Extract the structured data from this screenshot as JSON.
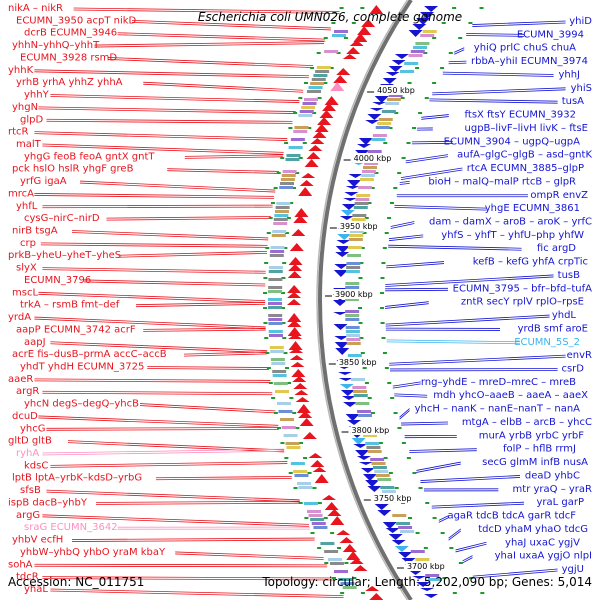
{
  "title": "Escherichia coli UMN026, complete genome",
  "footer": {
    "accession": "Accession: NC_011751",
    "info": "Topology: circular; Length: 5,202,090 bp; Genes: 5,014"
  },
  "colors": {
    "forward": "#e8141e",
    "reverse": "#1515d2",
    "rna": "#ff8fc1",
    "trna": "#3bb4ef",
    "backbone": "#707070"
  },
  "ticks": [
    "4050 kbp",
    "4000 kbp",
    "3950 kbp",
    "3900 kbp",
    "3850 kbp",
    "3800 kbp",
    "3750 kbp",
    "3700 kbp"
  ],
  "left_labels": [
    {
      "t": "nikA – nikR",
      "c": "forward"
    },
    {
      "t": "ECUMN_3950 acpT nikD",
      "c": "forward"
    },
    {
      "t": "dcrB  ECUMN_3946",
      "c": "forward"
    },
    {
      "t": "yhhN–yhhQ–yhhT",
      "c": "forward"
    },
    {
      "t": "ECUMN_3928 rsmD",
      "c": "forward"
    },
    {
      "t": "yhhK",
      "c": "forward"
    },
    {
      "t": "yrhB  yrhA  yhhZ  yhhA",
      "c": "forward"
    },
    {
      "t": "yhhY",
      "c": "forward"
    },
    {
      "t": "yhgN",
      "c": "forward"
    },
    {
      "t": "glpD",
      "c": "forward"
    },
    {
      "t": "rtcR",
      "c": "forward"
    },
    {
      "t": "malT",
      "c": "forward"
    },
    {
      "t": "yhgG  feoB  feoA  gntX  gntT",
      "c": "forward"
    },
    {
      "t": "pck  hslO  hslR  yhgF  greB",
      "c": "forward"
    },
    {
      "t": "yrfG  igaA",
      "c": "forward"
    },
    {
      "t": "mrcA",
      "c": "forward"
    },
    {
      "t": "yhfL",
      "c": "forward"
    },
    {
      "t": "cysG–nirC–nirD",
      "c": "forward"
    },
    {
      "t": "nirB  tsgA",
      "c": "forward"
    },
    {
      "t": "crp",
      "c": "forward"
    },
    {
      "t": "prkB–yheU–yheT–yheS",
      "c": "forward"
    },
    {
      "t": "slyX",
      "c": "forward"
    },
    {
      "t": "ECUMN_3796",
      "c": "forward"
    },
    {
      "t": "mscL",
      "c": "forward"
    },
    {
      "t": "trkA – rsmB  fmt–def",
      "c": "forward"
    },
    {
      "t": "yrdA",
      "c": "forward"
    },
    {
      "t": "aapP  ECUMN_3742  acrF",
      "c": "forward"
    },
    {
      "t": "aapJ",
      "c": "forward"
    },
    {
      "t": "acrE  fis–dusB–prmA  accC–accB",
      "c": "forward"
    },
    {
      "t": "yhdT  yhdH  ECUMN_3725",
      "c": "forward"
    },
    {
      "t": "aaeR",
      "c": "forward"
    },
    {
      "t": "argR",
      "c": "forward"
    },
    {
      "t": "yhcN  degS–degQ–yhcB",
      "c": "forward"
    },
    {
      "t": "dcuD",
      "c": "forward"
    },
    {
      "t": "yhcG",
      "c": "forward"
    },
    {
      "t": "gltD  gltB",
      "c": "forward"
    },
    {
      "t": "ryhA",
      "c": "rna"
    },
    {
      "t": "kdsC",
      "c": "forward"
    },
    {
      "t": "lptB  lptA–yrbK–kdsD–yrbG",
      "c": "forward"
    },
    {
      "t": "sfsB",
      "c": "forward"
    },
    {
      "t": "ispB  dacB–yhbY",
      "c": "forward"
    },
    {
      "t": "argG",
      "c": "forward"
    },
    {
      "t": "sraG  ECUMN_3642",
      "c": "rna"
    },
    {
      "t": "yhbV  ecfH",
      "c": "forward"
    },
    {
      "t": "yhbW–yhbQ  yhbO  yraM  kbaY",
      "c": "forward"
    },
    {
      "t": "sohA",
      "c": "forward"
    },
    {
      "t": "tdcR",
      "c": "forward"
    },
    {
      "t": "yhaL",
      "c": "forward"
    }
  ],
  "right_labels": [
    {
      "t": "yhiD",
      "c": "reverse"
    },
    {
      "t": "ECUMN_3994",
      "c": "reverse"
    },
    {
      "t": "yhiQ  prlC  chuS  chuA",
      "c": "reverse"
    },
    {
      "t": "rbbA–yhiI  ECUMN_3974",
      "c": "reverse"
    },
    {
      "t": "yhhJ",
      "c": "reverse"
    },
    {
      "t": "yhiS",
      "c": "reverse"
    },
    {
      "t": "tusA",
      "c": "reverse"
    },
    {
      "t": "ftsX  ftsY  ECUMN_3932",
      "c": "reverse"
    },
    {
      "t": "ugpB–livF–livH  livK – ftsE",
      "c": "reverse"
    },
    {
      "t": "ECUMN_3904 – ugpQ–ugpA",
      "c": "reverse"
    },
    {
      "t": "aufA–glgC–glgB – asd–gntK",
      "c": "reverse"
    },
    {
      "t": "rtcA  ECUMN_3885–glpP",
      "c": "reverse"
    },
    {
      "t": "bioH – malQ–malP  rtcB – glpR",
      "c": "reverse"
    },
    {
      "t": "ompR  envZ",
      "c": "reverse"
    },
    {
      "t": "yhgE  ECUMN_3861",
      "c": "reverse"
    },
    {
      "t": "dam – damX – aroB – aroK – yrfC",
      "c": "reverse"
    },
    {
      "t": "yhfS – yhfT – yhfU–php  yhfW",
      "c": "reverse"
    },
    {
      "t": "fic  argD",
      "c": "reverse"
    },
    {
      "t": "kefB – kefG  yhfA  crpTic",
      "c": "reverse"
    },
    {
      "t": "tusB",
      "c": "reverse"
    },
    {
      "t": "ECUMN_3795 – bfr–bfd–tufA",
      "c": "reverse"
    },
    {
      "t": "zntR  secY  rplV  rplO–rpsE",
      "c": "reverse"
    },
    {
      "t": "yhdL",
      "c": "reverse"
    },
    {
      "t": "yrdB  smf  aroE",
      "c": "reverse"
    },
    {
      "t": "ECUMN_5S_2",
      "c": "trna"
    },
    {
      "t": "envR",
      "c": "reverse"
    },
    {
      "t": "csrD",
      "c": "reverse"
    },
    {
      "t": "rng–yhdE – mreD–mreC – mreB",
      "c": "reverse"
    },
    {
      "t": "mdh  yhcO–aaeB – aaeA – aaeX",
      "c": "reverse"
    },
    {
      "t": "yhcH – nanK – nanE–nanT – nanA",
      "c": "reverse"
    },
    {
      "t": "mtgA – elbB – arcB – yhcC",
      "c": "reverse"
    },
    {
      "t": "murA  yrbB  yrbC  yrbF",
      "c": "reverse"
    },
    {
      "t": "folP – hflB  rrmJ",
      "c": "reverse"
    },
    {
      "t": "secG  glmM  infB  nusA",
      "c": "reverse"
    },
    {
      "t": "deaD  yhbC",
      "c": "reverse"
    },
    {
      "t": "mtr  yraQ – yraR",
      "c": "reverse"
    },
    {
      "t": "yraL  garP",
      "c": "reverse"
    },
    {
      "t": "agaR  tdcB  tdcA  garR  tdcF",
      "c": "reverse"
    },
    {
      "t": "tdcD  yhaM  yhaO  tdcG",
      "c": "reverse"
    },
    {
      "t": "yhaJ  uxaC  ygjV",
      "c": "reverse"
    },
    {
      "t": "yhaI  uxaA  ygjO  nlpI",
      "c": "reverse"
    },
    {
      "t": "ygjU",
      "c": "reverse"
    }
  ]
}
